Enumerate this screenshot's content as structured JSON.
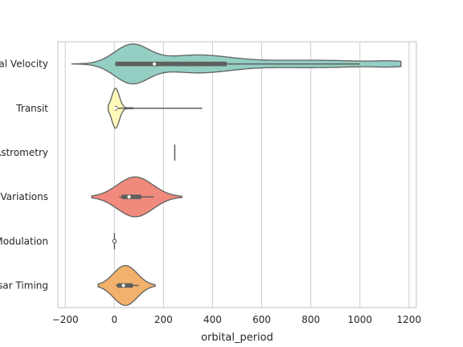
{
  "chart_data": {
    "type": "violin",
    "orientation": "horizontal",
    "title": "",
    "xlabel": "orbital_period",
    "ylabel": "",
    "xlim": [
      -230,
      1230
    ],
    "xticks": [
      -200,
      0,
      200,
      400,
      600,
      800,
      1000,
      1200
    ],
    "xtick_labels": [
      "−200",
      "0",
      "200",
      "400",
      "600",
      "800",
      "1000",
      "1200"
    ],
    "grid": "vertical",
    "categories": [
      {
        "label": "Radial Velocity",
        "color": "#93cfc2",
        "median": 163,
        "q1": 5,
        "q3": 458,
        "whisker_min": 1,
        "whisker_max": 1000,
        "min_extent": -173,
        "max_extent": 1167
      },
      {
        "label": "Transit",
        "color": "#fff9b9",
        "median": 5,
        "q1": 1,
        "q3": 12,
        "whisker_min": 0,
        "whisker_max": 358,
        "min_extent": -25,
        "max_extent": 75
      },
      {
        "label": "Astrometry",
        "color": "#b9b4d6",
        "median": 246,
        "q1": 246,
        "q3": 246,
        "whisker_min": 246,
        "whisker_max": 246,
        "min_extent": 245,
        "max_extent": 247
      },
      {
        "label": "Eclipse Timing Variations",
        "color": "#ef8a7c",
        "median": 60,
        "q1": 30,
        "q3": 110,
        "whisker_min": 20,
        "whisker_max": 160,
        "min_extent": -92,
        "max_extent": 275
      },
      {
        "label": "Orbital Brightness Modulation",
        "color": "#8eb1d0",
        "median": 0.5,
        "q1": 0.3,
        "q3": 0.9,
        "whisker_min": 0.2,
        "whisker_max": 1.5,
        "min_extent": -3,
        "max_extent": 4
      },
      {
        "label": "Pulsar Timing",
        "color": "#f2b26c",
        "median": 37,
        "q1": 12,
        "q3": 75,
        "whisker_min": 5,
        "whisker_max": 100,
        "min_extent": -66,
        "max_extent": 166
      }
    ]
  }
}
